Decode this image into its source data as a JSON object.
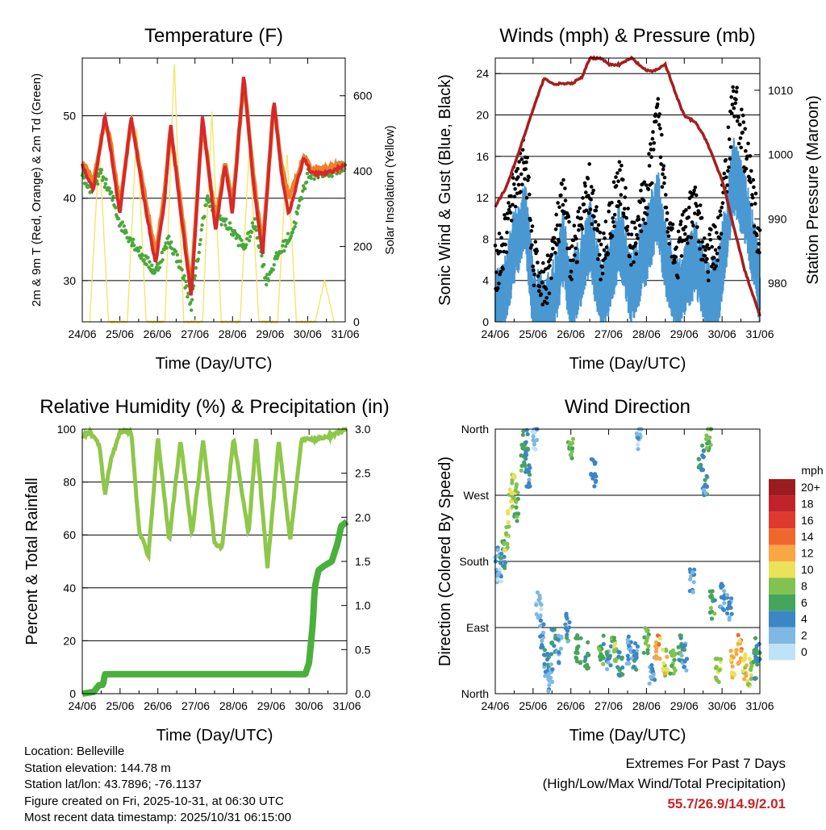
{
  "panels": {
    "temperature": {
      "title": "Temperature (F)",
      "ylabel_left": "2m & 9m T (Red, Orange) & 2m Td (Green)",
      "ylabel_right": "Solar Insolation (Yellow)",
      "xlabel": "Time (Day/UTC)",
      "yticks_left": [
        "30",
        "40",
        "50"
      ],
      "yticks_right": [
        "0",
        "200",
        "400",
        "600"
      ]
    },
    "winds": {
      "title": "Winds (mph) & Pressure (mb)",
      "ylabel_left": "Sonic Wind & Gust (Blue, Black)",
      "ylabel_right": "Station Pressure (Maroon)",
      "xlabel": "Time (Day/UTC)",
      "yticks_left": [
        "0",
        "4",
        "8",
        "12",
        "16",
        "20",
        "24"
      ],
      "yticks_right": [
        "980",
        "990",
        "1000",
        "1010"
      ]
    },
    "humidity": {
      "title": "Relative Humidity (%) & Precipitation (in)",
      "ylabel_left": "Percent & Total Rainfall",
      "xlabel": "Time (Day/UTC)",
      "yticks_left": [
        "0",
        "20",
        "40",
        "60",
        "80",
        "100"
      ],
      "yticks_right": [
        "0.0",
        "0.5",
        "1.0",
        "1.5",
        "2.0",
        "2.5",
        "3.0"
      ]
    },
    "direction": {
      "title": "Wind Direction",
      "ylabel_left": "Direction (Colored By Speed)",
      "xlabel": "Time (Day/UTC)",
      "yticks_left": [
        "North",
        "East",
        "South",
        "West",
        "North"
      ],
      "legend_title": "mph",
      "legend_labels": [
        "20+",
        "18",
        "16",
        "14",
        "12",
        "10",
        "8",
        "6",
        "4",
        "2",
        "0"
      ],
      "legend_colors": [
        "#9b1c1f",
        "#c0232a",
        "#de3a2f",
        "#f0672c",
        "#f9a745",
        "#e9e25a",
        "#82c250",
        "#45a55b",
        "#3c86c4",
        "#7fb8e2",
        "#bfe3f6"
      ]
    }
  },
  "xticks": [
    "24/06",
    "25/06",
    "26/06",
    "27/06",
    "28/06",
    "29/06",
    "30/06",
    "31/06"
  ],
  "colors": {
    "temp2m": "#d42a2a",
    "temp9m": "#f07f2a",
    "dewpoint": "#49a83c",
    "solar": "#f5e56b",
    "wind": "#4a98d2",
    "gust": "#000000",
    "pressure": "#a41f1f",
    "rh": "#8fc74a",
    "precip": "#49b03c"
  },
  "info": {
    "location": "Location: Belleville",
    "elevation": "Station elevation: 144.78 m",
    "latlon": "Station lat/lon: 43.7896; -76.1137",
    "created": "Figure created on Fri, 2025-10-31, at 06:30 UTC",
    "recent": "Most recent data timestamp: 2025/10/31 06:15:00"
  },
  "extremes": {
    "line1": "Extremes For Past 7 Days",
    "line2": "(High/Low/Max Wind/Total Precipitation)",
    "values": "55.7/26.9/14.9/2.01"
  },
  "chart_data": [
    {
      "type": "line",
      "title": "Temperature (F)",
      "x_unit": "days since 24/06 00 UTC",
      "ylim": [
        25,
        57
      ],
      "y2lim": [
        0,
        700
      ],
      "series": [
        {
          "name": "2m T",
          "color_key": "temp2m",
          "x": [
            0,
            0.3,
            0.6,
            0.75,
            1.0,
            1.3,
            1.6,
            1.95,
            2.2,
            2.35,
            2.6,
            2.9,
            3.2,
            3.55,
            3.8,
            4.0,
            4.3,
            4.55,
            4.8,
            5.1,
            5.3,
            5.5,
            5.9,
            6.1,
            6.5,
            7.0
          ],
          "y": [
            44,
            41,
            50,
            46,
            38,
            50,
            41,
            32,
            40,
            49,
            39,
            28,
            50,
            36,
            44,
            38,
            55,
            42,
            33,
            52,
            43,
            38,
            45,
            43,
            43,
            44
          ]
        },
        {
          "name": "9m T",
          "color_key": "temp9m",
          "x": [
            0,
            0.3,
            0.6,
            0.75,
            1.0,
            1.3,
            1.6,
            1.95,
            2.2,
            2.35,
            2.6,
            2.9,
            3.2,
            3.55,
            3.8,
            4.0,
            4.3,
            4.55,
            4.8,
            5.1,
            5.3,
            5.5,
            5.9,
            6.1,
            6.5,
            7.0
          ],
          "y": [
            44.5,
            42,
            49.5,
            47,
            39,
            49.5,
            42,
            33,
            41,
            48.5,
            40,
            29,
            49.5,
            37,
            44.5,
            39,
            54.5,
            43,
            34,
            51.5,
            44,
            40,
            45,
            43.5,
            43.5,
            44
          ]
        },
        {
          "name": "2m Td",
          "color_key": "dewpoint",
          "x": [
            0,
            0.2,
            0.5,
            0.8,
            1.0,
            1.3,
            1.6,
            1.95,
            2.3,
            2.6,
            2.9,
            3.3,
            3.6,
            4.0,
            4.3,
            4.6,
            4.9,
            5.2,
            5.6,
            6.0,
            6.5,
            7.0
          ],
          "y": [
            43,
            41,
            43,
            40,
            37,
            35,
            33,
            31,
            35,
            32,
            27,
            40,
            38,
            36,
            34,
            37,
            30,
            33,
            36,
            43,
            43,
            44
          ]
        },
        {
          "name": "Solar Insolation",
          "color_key": "solar",
          "axis": "right",
          "x": [
            0.2,
            0.45,
            0.7,
            1.2,
            1.45,
            1.7,
            2.2,
            2.45,
            2.7,
            3.2,
            3.45,
            3.7,
            4.2,
            4.45,
            4.7,
            5.2,
            5.45,
            5.7,
            6.2,
            6.45,
            6.7
          ],
          "y": [
            0,
            460,
            0,
            0,
            520,
            0,
            0,
            690,
            0,
            0,
            560,
            0,
            0,
            470,
            0,
            0,
            450,
            0,
            0,
            110,
            0
          ]
        }
      ]
    },
    {
      "type": "line",
      "title": "Winds (mph) & Pressure (mb)",
      "x_unit": "days since 24/06 00 UTC",
      "ylim": [
        0,
        25.5
      ],
      "y2lim": [
        974,
        1015
      ],
      "series": [
        {
          "name": "Pressure",
          "color_key": "pressure",
          "axis": "right",
          "x": [
            0,
            0.3,
            0.6,
            1.0,
            1.3,
            1.5,
            1.7,
            2.0,
            2.3,
            2.5,
            2.8,
            3.0,
            3.3,
            3.6,
            4.0,
            4.2,
            4.5,
            4.8,
            5.0,
            5.3,
            5.6,
            6.0,
            6.3,
            6.6,
            7.0
          ],
          "y": [
            992,
            995,
            1000,
            1007,
            1012,
            1011,
            1011,
            1011,
            1012,
            1015,
            1015,
            1014,
            1014,
            1015,
            1013,
            1013,
            1014,
            1009,
            1006,
            1005,
            1002,
            996,
            989,
            982,
            975
          ]
        },
        {
          "name": "Sonic Wind",
          "color_key": "wind",
          "x": [
            0,
            0.2,
            0.5,
            0.8,
            1.0,
            1.3,
            1.6,
            1.8,
            2.0,
            2.3,
            2.5,
            2.8,
            3.0,
            3.3,
            3.6,
            3.8,
            4.0,
            4.3,
            4.5,
            4.8,
            5.0,
            5.3,
            5.6,
            5.9,
            6.1,
            6.3,
            6.6,
            6.9,
            7.0
          ],
          "y": [
            2,
            3,
            8,
            11,
            3,
            1,
            4,
            8,
            3,
            6,
            9,
            3,
            5,
            9,
            4,
            6,
            8,
            12,
            7,
            3,
            5,
            7,
            3,
            4,
            9,
            15,
            12,
            6,
            4
          ]
        },
        {
          "name": "Gust",
          "color_key": "gust",
          "x": [
            0,
            0.2,
            0.5,
            0.8,
            1.0,
            1.3,
            1.6,
            1.8,
            2.0,
            2.3,
            2.5,
            2.8,
            3.0,
            3.3,
            3.6,
            3.8,
            4.0,
            4.3,
            4.5,
            4.8,
            5.0,
            5.3,
            5.6,
            5.9,
            6.1,
            6.3,
            6.6,
            6.9,
            7.0
          ],
          "y": [
            5,
            7,
            13,
            16,
            6,
            3,
            8,
            12,
            6,
            10,
            13,
            6,
            9,
            14,
            7,
            10,
            12,
            20,
            12,
            6,
            9,
            11,
            6,
            8,
            14,
            22,
            17,
            10,
            7
          ]
        }
      ]
    },
    {
      "type": "line",
      "title": "Relative Humidity (%) & Precipitation (in)",
      "x_unit": "days since 24/06 00 UTC",
      "ylim": [
        0,
        100
      ],
      "y2lim": [
        0,
        3.0
      ],
      "series": [
        {
          "name": "Relative Humidity",
          "color_key": "rh",
          "x": [
            0,
            0.2,
            0.45,
            0.6,
            0.75,
            1.0,
            1.3,
            1.5,
            1.75,
            2.0,
            2.3,
            2.6,
            2.9,
            3.2,
            3.5,
            3.7,
            4.0,
            4.4,
            4.6,
            4.9,
            5.2,
            5.5,
            5.8,
            6.1,
            6.5,
            7.0
          ],
          "y": [
            97,
            99,
            94,
            75,
            88,
            99,
            99,
            62,
            52,
            97,
            58,
            96,
            60,
            96,
            57,
            55,
            97,
            60,
            97,
            48,
            96,
            58,
            96,
            96,
            97,
            100
          ]
        },
        {
          "name": "Total Precipitation",
          "color_key": "precip",
          "axis": "right",
          "x": [
            0,
            0.3,
            0.45,
            0.55,
            0.6,
            1.0,
            2.0,
            3.0,
            4.0,
            5.0,
            5.9,
            6.0,
            6.1,
            6.15,
            6.25,
            6.4,
            6.6,
            6.75,
            6.85,
            7.0
          ],
          "y": [
            0,
            0.02,
            0.1,
            0.1,
            0.22,
            0.22,
            0.22,
            0.22,
            0.22,
            0.22,
            0.22,
            0.35,
            0.8,
            1.2,
            1.4,
            1.45,
            1.5,
            1.7,
            1.9,
            1.95
          ]
        }
      ]
    },
    {
      "type": "scatter",
      "title": "Wind Direction",
      "x_unit": "days since 24/06 00 UTC",
      "y_unit": "degrees from North (0-360)",
      "ylim": [
        0,
        360
      ],
      "series": [
        {
          "name": "Direction",
          "color_by": "speed",
          "x": [
            0.05,
            0.1,
            0.2,
            0.3,
            0.4,
            0.5,
            0.55,
            0.75,
            0.8,
            0.85,
            1.05,
            1.15,
            1.25,
            1.35,
            1.45,
            1.55,
            1.7,
            1.9,
            2.0,
            2.2,
            2.4,
            2.6,
            2.8,
            3.0,
            3.15,
            3.3,
            3.55,
            3.7,
            3.8,
            4.0,
            4.15,
            4.3,
            4.5,
            4.7,
            4.9,
            5.0,
            5.2,
            5.45,
            5.55,
            5.65,
            5.75,
            5.9,
            6.0,
            6.2,
            6.3,
            6.45,
            6.6,
            6.75,
            6.9,
            6.95
          ],
          "y": [
            180,
            170,
            190,
            215,
            260,
            280,
            255,
            320,
            340,
            300,
            350,
            120,
            80,
            40,
            20,
            70,
            60,
            90,
            330,
            60,
            50,
            300,
            60,
            50,
            60,
            40,
            60,
            50,
            350,
            70,
            30,
            60,
            40,
            40,
            60,
            50,
            150,
            320,
            280,
            350,
            120,
            30,
            130,
            120,
            40,
            60,
            35,
            30,
            40,
            60
          ],
          "speed": [
            3,
            2,
            5,
            8,
            10,
            9,
            7,
            6,
            5,
            4,
            2,
            2,
            3,
            4,
            2,
            5,
            3,
            4,
            7,
            6,
            5,
            4,
            6,
            4,
            8,
            5,
            3,
            4,
            2,
            7,
            3,
            12,
            10,
            8,
            6,
            4,
            3,
            5,
            4,
            7,
            6,
            9,
            4,
            3,
            11,
            12,
            10,
            8,
            6,
            4
          ]
        }
      ]
    }
  ]
}
